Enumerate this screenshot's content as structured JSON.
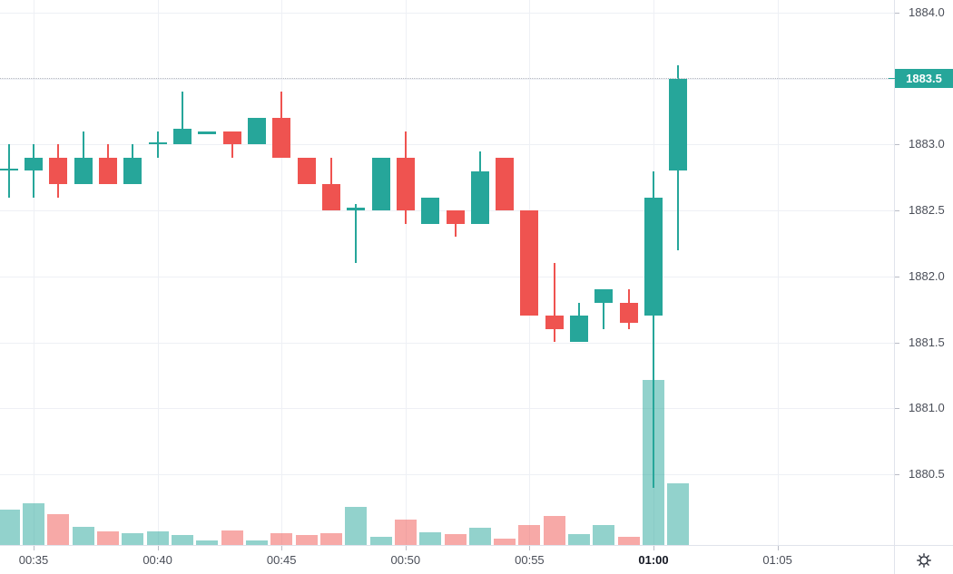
{
  "chart_data": {
    "type": "candlestick",
    "title": "",
    "current_price": "1883.5",
    "grid": true,
    "legend_position": "none",
    "price_axis": {
      "ticks": [
        "1884.0",
        "1883.5",
        "1883.0",
        "1882.5",
        "1882.0",
        "1881.5",
        "1881.0",
        "1880.5"
      ],
      "highlighted_tick": "1883.5",
      "range_top": 1884.1,
      "range_bottom": 1880.3
    },
    "time_axis": {
      "ticks": [
        {
          "label": "00:35",
          "candle_index": 1,
          "bold": false
        },
        {
          "label": "00:40",
          "candle_index": 6,
          "bold": false
        },
        {
          "label": "00:45",
          "candle_index": 11,
          "bold": false
        },
        {
          "label": "00:50",
          "candle_index": 16,
          "bold": false
        },
        {
          "label": "00:55",
          "candle_index": 21,
          "bold": false
        },
        {
          "label": "01:00",
          "candle_index": 26,
          "bold": true
        },
        {
          "label": "01:05",
          "candle_index": 31,
          "bold": false
        }
      ]
    },
    "volume_unit": "relative",
    "candles": [
      {
        "time": "00:34",
        "open": 1882.8,
        "high": 1883.0,
        "low": 1882.6,
        "close": 1882.82,
        "volume": 39
      },
      {
        "time": "00:35",
        "open": 1882.8,
        "high": 1883.0,
        "low": 1882.6,
        "close": 1882.9,
        "volume": 46
      },
      {
        "time": "00:36",
        "open": 1882.9,
        "high": 1883.0,
        "low": 1882.6,
        "close": 1882.7,
        "volume": 34
      },
      {
        "time": "00:37",
        "open": 1882.7,
        "high": 1883.1,
        "low": 1882.7,
        "close": 1882.9,
        "volume": 20
      },
      {
        "time": "00:38",
        "open": 1882.9,
        "high": 1883.0,
        "low": 1882.7,
        "close": 1882.7,
        "volume": 15
      },
      {
        "time": "00:39",
        "open": 1882.7,
        "high": 1883.0,
        "low": 1882.7,
        "close": 1882.9,
        "volume": 13
      },
      {
        "time": "00:40",
        "open": 1883.0,
        "high": 1883.1,
        "low": 1882.9,
        "close": 1883.02,
        "volume": 15
      },
      {
        "time": "00:41",
        "open": 1883.0,
        "high": 1883.4,
        "low": 1883.0,
        "close": 1883.12,
        "volume": 11
      },
      {
        "time": "00:42",
        "open": 1883.08,
        "high": 1883.1,
        "low": 1883.08,
        "close": 1883.1,
        "volume": 5
      },
      {
        "time": "00:43",
        "open": 1883.1,
        "high": 1883.1,
        "low": 1882.9,
        "close": 1883.0,
        "volume": 16
      },
      {
        "time": "00:44",
        "open": 1883.0,
        "high": 1883.2,
        "low": 1883.0,
        "close": 1883.2,
        "volume": 5
      },
      {
        "time": "00:45",
        "open": 1883.2,
        "high": 1883.4,
        "low": 1882.9,
        "close": 1882.9,
        "volume": 13
      },
      {
        "time": "00:46",
        "open": 1882.9,
        "high": 1882.9,
        "low": 1882.7,
        "close": 1882.7,
        "volume": 11
      },
      {
        "time": "00:47",
        "open": 1882.7,
        "high": 1882.9,
        "low": 1882.5,
        "close": 1882.5,
        "volume": 13
      },
      {
        "time": "00:48",
        "open": 1882.5,
        "high": 1882.55,
        "low": 1882.1,
        "close": 1882.52,
        "volume": 42
      },
      {
        "time": "00:49",
        "open": 1882.5,
        "high": 1882.9,
        "low": 1882.5,
        "close": 1882.9,
        "volume": 9
      },
      {
        "time": "00:50",
        "open": 1882.9,
        "high": 1883.1,
        "low": 1882.4,
        "close": 1882.5,
        "volume": 28
      },
      {
        "time": "00:51",
        "open": 1882.4,
        "high": 1882.6,
        "low": 1882.4,
        "close": 1882.6,
        "volume": 14
      },
      {
        "time": "00:52",
        "open": 1882.5,
        "high": 1882.5,
        "low": 1882.3,
        "close": 1882.4,
        "volume": 12
      },
      {
        "time": "00:53",
        "open": 1882.4,
        "high": 1882.95,
        "low": 1882.4,
        "close": 1882.8,
        "volume": 19
      },
      {
        "time": "00:54",
        "open": 1882.9,
        "high": 1882.9,
        "low": 1882.5,
        "close": 1882.5,
        "volume": 7
      },
      {
        "time": "00:55",
        "open": 1882.5,
        "high": 1882.5,
        "low": 1881.7,
        "close": 1881.7,
        "volume": 22
      },
      {
        "time": "00:56",
        "open": 1881.7,
        "high": 1882.1,
        "low": 1881.5,
        "close": 1881.6,
        "volume": 32
      },
      {
        "time": "00:57",
        "open": 1881.5,
        "high": 1881.8,
        "low": 1881.5,
        "close": 1881.7,
        "volume": 12
      },
      {
        "time": "00:58",
        "open": 1881.8,
        "high": 1881.9,
        "low": 1881.6,
        "close": 1881.9,
        "volume": 22
      },
      {
        "time": "00:59",
        "open": 1881.8,
        "high": 1881.9,
        "low": 1881.6,
        "close": 1881.65,
        "volume": 9
      },
      {
        "time": "01:00",
        "open": 1881.7,
        "high": 1882.8,
        "low": 1880.4,
        "close": 1882.6,
        "volume": 182
      },
      {
        "time": "01:01",
        "open": 1882.8,
        "high": 1883.6,
        "low": 1882.2,
        "close": 1883.5,
        "volume": 68
      }
    ]
  },
  "colors": {
    "up": "#26a69a",
    "down": "#ef5350",
    "volume_up": "rgba(38,166,154,0.5)",
    "volume_down": "rgba(239,83,80,0.5)",
    "grid": "#eef0f5",
    "axis_line": "#e0e3eb",
    "axis_text": "#4a4e58",
    "axis_text_bold": "#131722",
    "price_line": "#b2b5be",
    "price_label_bg": "#26a69a",
    "price_label_text": "#ffffff",
    "icon": "#2a2e39",
    "background": "#ffffff"
  },
  "icons": {
    "settings": "gear-icon"
  }
}
